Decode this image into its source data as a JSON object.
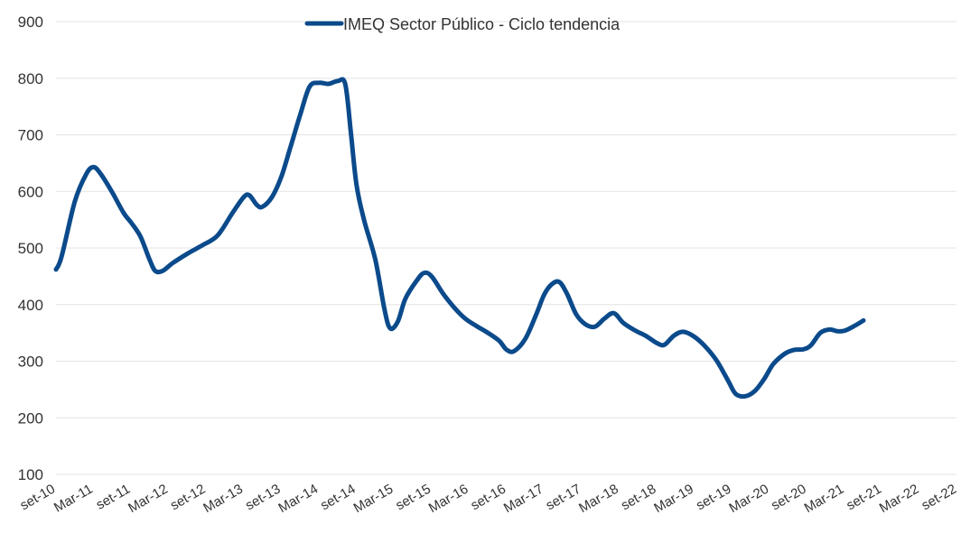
{
  "chart_data": {
    "type": "line",
    "title": "",
    "xlabel": "",
    "ylabel": "",
    "ylim": [
      100,
      900
    ],
    "yticks": [
      100,
      200,
      300,
      400,
      500,
      600,
      700,
      800,
      900
    ],
    "grid": true,
    "legend_position": "top-center",
    "x_tick_labels": [
      "set-10",
      "Mar-11",
      "set-11",
      "Mar-12",
      "set-12",
      "Mar-13",
      "set-13",
      "Mar-14",
      "set-14",
      "Mar-15",
      "set-15",
      "Mar-16",
      "set-16",
      "Mar-17",
      "set-17",
      "Mar-18",
      "set-18",
      "Mar-19",
      "set-19",
      "Mar-20",
      "set-20",
      "Mar-21",
      "set-21",
      "Mar-22",
      "set-22"
    ],
    "series": [
      {
        "name": "IMEQ Sector Público - Ciclo tendencia",
        "color": "#0b4a8b",
        "points": [
          [
            0,
            462
          ],
          [
            0.15,
            485
          ],
          [
            0.5,
            582
          ],
          [
            0.8,
            630
          ],
          [
            1.0,
            643
          ],
          [
            1.2,
            630
          ],
          [
            1.5,
            598
          ],
          [
            1.8,
            562
          ],
          [
            2.0,
            545
          ],
          [
            2.25,
            520
          ],
          [
            2.5,
            478
          ],
          [
            2.65,
            459
          ],
          [
            2.85,
            460
          ],
          [
            3.1,
            473
          ],
          [
            3.5,
            490
          ],
          [
            3.9,
            505
          ],
          [
            4.3,
            522
          ],
          [
            4.7,
            562
          ],
          [
            5.0,
            590
          ],
          [
            5.15,
            593
          ],
          [
            5.35,
            576
          ],
          [
            5.5,
            573
          ],
          [
            5.75,
            590
          ],
          [
            6.0,
            626
          ],
          [
            6.25,
            680
          ],
          [
            6.5,
            735
          ],
          [
            6.75,
            785
          ],
          [
            7.0,
            792
          ],
          [
            7.25,
            790
          ],
          [
            7.5,
            795
          ],
          [
            7.7,
            790
          ],
          [
            7.85,
            705
          ],
          [
            8.0,
            612
          ],
          [
            8.2,
            550
          ],
          [
            8.5,
            480
          ],
          [
            8.75,
            390
          ],
          [
            8.9,
            358
          ],
          [
            9.1,
            370
          ],
          [
            9.3,
            410
          ],
          [
            9.6,
            442
          ],
          [
            9.8,
            456
          ],
          [
            10.0,
            450
          ],
          [
            10.3,
            420
          ],
          [
            10.6,
            395
          ],
          [
            10.9,
            375
          ],
          [
            11.2,
            362
          ],
          [
            11.5,
            350
          ],
          [
            11.8,
            336
          ],
          [
            12.0,
            320
          ],
          [
            12.2,
            318
          ],
          [
            12.5,
            340
          ],
          [
            12.8,
            385
          ],
          [
            13.0,
            418
          ],
          [
            13.2,
            436
          ],
          [
            13.4,
            440
          ],
          [
            13.6,
            420
          ],
          [
            13.85,
            383
          ],
          [
            14.1,
            365
          ],
          [
            14.35,
            361
          ],
          [
            14.6,
            375
          ],
          [
            14.85,
            385
          ],
          [
            15.1,
            368
          ],
          [
            15.4,
            355
          ],
          [
            15.7,
            345
          ],
          [
            16.0,
            332
          ],
          [
            16.2,
            329
          ],
          [
            16.45,
            345
          ],
          [
            16.7,
            352
          ],
          [
            17.0,
            343
          ],
          [
            17.3,
            325
          ],
          [
            17.6,
            300
          ],
          [
            17.9,
            265
          ],
          [
            18.1,
            242
          ],
          [
            18.35,
            238
          ],
          [
            18.6,
            247
          ],
          [
            18.85,
            268
          ],
          [
            19.1,
            295
          ],
          [
            19.4,
            313
          ],
          [
            19.65,
            320
          ],
          [
            19.9,
            321
          ],
          [
            20.1,
            328
          ],
          [
            20.35,
            350
          ],
          [
            20.6,
            356
          ],
          [
            20.8,
            353
          ],
          [
            21.0,
            354
          ],
          [
            21.25,
            362
          ],
          [
            21.5,
            372
          ]
        ]
      }
    ]
  }
}
